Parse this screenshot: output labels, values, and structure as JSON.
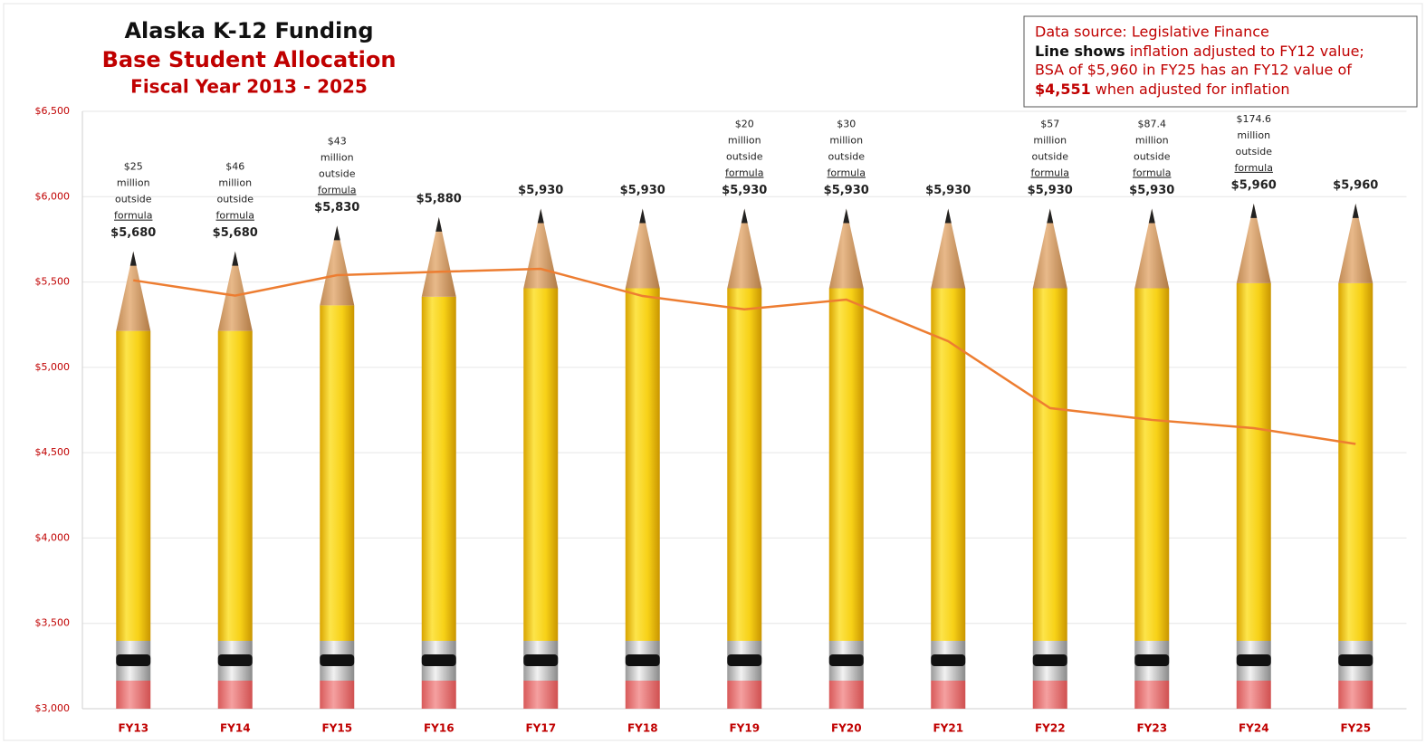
{
  "chart_data": {
    "type": "bar",
    "title": "Alaska K-12 Funding",
    "subtitle": [
      "Base Student Allocation",
      "Fiscal Year 2013 - 2025"
    ],
    "note": {
      "source": "Data source: Legislative Finance",
      "line_bold": "Line shows",
      "line_rest": "inflation adjusted to FY12 value;",
      "bsa": "BSA of $5,960 in FY25 has an FY12 value of",
      "adjusted_bold": "$4,551",
      "adjusted_rest": "when adjusted for inflation"
    },
    "categories": [
      "FY13",
      "FY14",
      "FY15",
      "FY16",
      "FY17",
      "FY18",
      "FY19",
      "FY20",
      "FY21",
      "FY22",
      "FY23",
      "FY24",
      "FY25"
    ],
    "series": [
      {
        "type": "bar",
        "color": "#f7d117",
        "values": [
          5680,
          5680,
          5830,
          5880,
          5930,
          5930,
          5930,
          5930,
          5930,
          5930,
          5930,
          5960,
          5960
        ],
        "value_labels": [
          "$5,680",
          "$5,680",
          "$5,830",
          "$5,880",
          "$5,930",
          "$5,930",
          "$5,930",
          "$5,930",
          "$5,930",
          "$5,930",
          "$5,930",
          "$5,960",
          "$5,960"
        ]
      },
      {
        "type": "line",
        "color": "#ed7d31",
        "values": [
          5510,
          5420,
          5540,
          5560,
          5577,
          5418,
          5340,
          5397,
          5153,
          4761,
          4692,
          4644,
          4551
        ]
      }
    ],
    "annotations": [
      [
        "$25",
        "million",
        "outside",
        "formula"
      ],
      [
        "$46",
        "million",
        "outside",
        "formula"
      ],
      [
        "$43",
        "million",
        "outside",
        "formula"
      ],
      null,
      null,
      null,
      [
        "$20",
        "million",
        "outside",
        "formula"
      ],
      [
        "$30",
        "million",
        "outside",
        "formula"
      ],
      null,
      [
        "$57",
        "million",
        "outside",
        "formula"
      ],
      [
        "$87.4",
        "million",
        "outside",
        "formula"
      ],
      [
        "$174.6",
        "million",
        "outside",
        "formula"
      ],
      null
    ],
    "ylim": [
      3000,
      6500
    ],
    "yticks": [
      {
        "value": 3000,
        "label": "$3,000"
      },
      {
        "value": 3500,
        "label": "$3,500"
      },
      {
        "value": 4000,
        "label": "$4,000"
      },
      {
        "value": 4500,
        "label": "$4,500"
      },
      {
        "value": 5000,
        "label": "$5,000"
      },
      {
        "value": 5500,
        "label": "$5,500"
      },
      {
        "value": 6000,
        "label": "$6,000"
      },
      {
        "value": 6500,
        "label": "$6,500"
      }
    ],
    "grid": true
  }
}
